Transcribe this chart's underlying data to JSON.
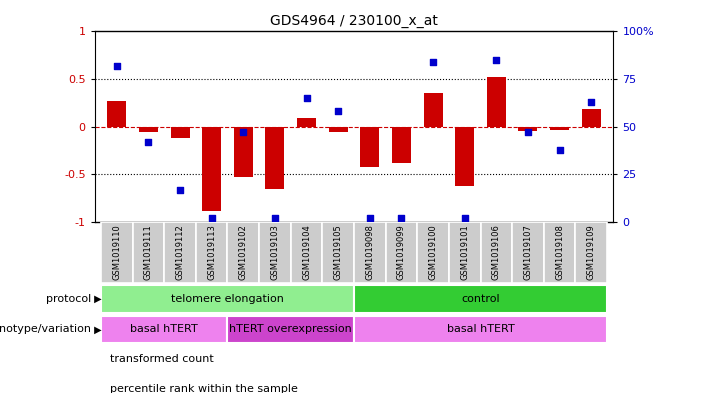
{
  "title": "GDS4964 / 230100_x_at",
  "samples": [
    "GSM1019110",
    "GSM1019111",
    "GSM1019112",
    "GSM1019113",
    "GSM1019102",
    "GSM1019103",
    "GSM1019104",
    "GSM1019105",
    "GSM1019098",
    "GSM1019099",
    "GSM1019100",
    "GSM1019101",
    "GSM1019106",
    "GSM1019107",
    "GSM1019108",
    "GSM1019109"
  ],
  "transformed_count": [
    0.27,
    -0.05,
    -0.12,
    -0.88,
    -0.53,
    -0.65,
    0.09,
    -0.05,
    -0.42,
    -0.38,
    0.35,
    -0.62,
    0.52,
    -0.04,
    -0.03,
    0.19
  ],
  "percentile_rank": [
    82,
    42,
    17,
    2,
    47,
    2,
    65,
    58,
    2,
    2,
    84,
    2,
    85,
    47,
    38,
    63
  ],
  "bar_color": "#cc0000",
  "dot_color": "#0000cc",
  "protocol_groups": [
    {
      "label": "telomere elongation",
      "start": 0,
      "end": 8,
      "color": "#90ee90"
    },
    {
      "label": "control",
      "start": 8,
      "end": 16,
      "color": "#33cc33"
    }
  ],
  "genotype_groups": [
    {
      "label": "basal hTERT",
      "start": 0,
      "end": 4,
      "color": "#ee82ee"
    },
    {
      "label": "hTERT overexpression",
      "start": 4,
      "end": 8,
      "color": "#cc44cc"
    },
    {
      "label": "basal hTERT",
      "start": 8,
      "end": 16,
      "color": "#ee82ee"
    }
  ],
  "ylim": [
    -1,
    1
  ],
  "yticks_left": [
    -1,
    -0.5,
    0,
    0.5,
    1
  ],
  "ytick_labels_left": [
    "-1",
    "-0.5",
    "0",
    "0.5",
    "1"
  ],
  "yticks_right": [
    0,
    25,
    50,
    75,
    100
  ],
  "ytick_labels_right": [
    "0",
    "25",
    "50",
    "75",
    "100%"
  ],
  "dotted_lines": [
    -0.5,
    0.5
  ],
  "legend_items": [
    {
      "label": "transformed count",
      "color": "#cc0000"
    },
    {
      "label": "percentile rank within the sample",
      "color": "#0000cc"
    }
  ],
  "protocol_label": "protocol",
  "genotype_label": "genotype/variation",
  "background_color": "#ffffff",
  "tick_label_color_left": "#cc0000",
  "tick_label_color_right": "#0000cc",
  "sample_box_color": "#cccccc",
  "sample_box_edge": "#aaaaaa"
}
